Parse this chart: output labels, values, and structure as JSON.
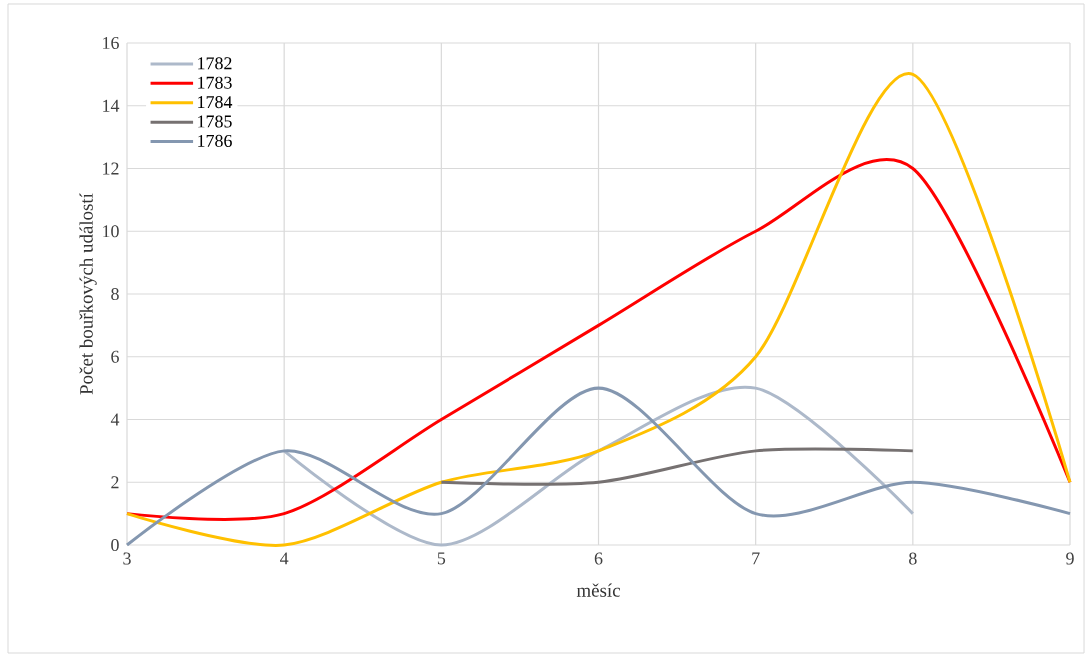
{
  "chart_data": {
    "type": "line",
    "xlabel": "měsíc",
    "ylabel": "Počet bouřkových událostí",
    "x": [
      3,
      4,
      5,
      6,
      7,
      8,
      9
    ],
    "series": [
      {
        "name": "1782",
        "color": "#adb9ca",
        "values": [
          null,
          3,
          0,
          3,
          5,
          1,
          null
        ]
      },
      {
        "name": "1783",
        "color": "#ff0000",
        "values": [
          1,
          1,
          4,
          7,
          10,
          12,
          2
        ]
      },
      {
        "name": "1784",
        "color": "#ffc000",
        "values": [
          1,
          0,
          2,
          3,
          6,
          15,
          2
        ]
      },
      {
        "name": "1785",
        "color": "#767171",
        "values": [
          null,
          null,
          2,
          2,
          3,
          3,
          null
        ]
      },
      {
        "name": "1786",
        "color": "#8497b0",
        "values": [
          0,
          3,
          1,
          5,
          1,
          2,
          1
        ]
      }
    ],
    "xlim": [
      3,
      9
    ],
    "xticks": [
      3,
      4,
      5,
      6,
      7,
      8,
      9
    ],
    "ylim": [
      0,
      16
    ],
    "yticks": [
      0,
      2,
      4,
      6,
      8,
      10,
      12,
      14,
      16
    ],
    "grid": true,
    "legend": "top left",
    "marker": "none",
    "line_style": "solid"
  }
}
